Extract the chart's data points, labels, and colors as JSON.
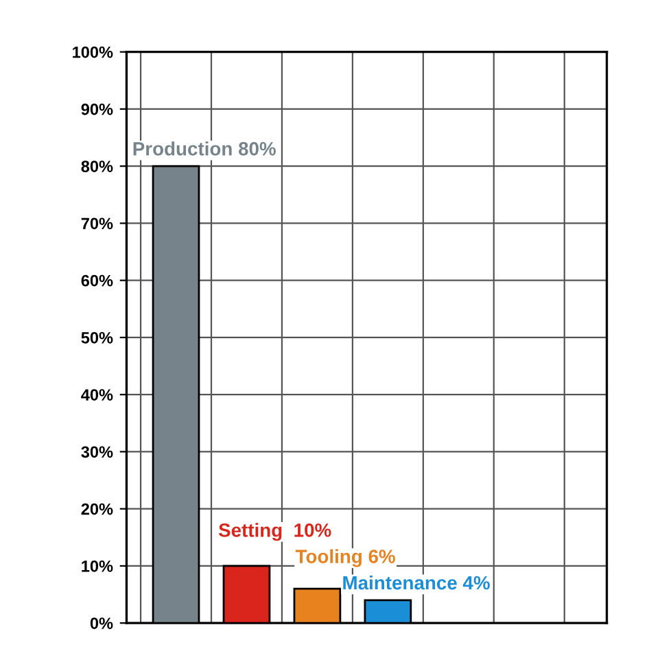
{
  "chart_data": {
    "type": "bar",
    "categories": [
      null,
      null,
      null,
      null
    ],
    "values": [
      80,
      10,
      6,
      4
    ],
    "colors": [
      "#77838b",
      "#d9251c",
      "#e8821e",
      "#1a8fd8"
    ],
    "value_labels": [
      "Production 80%",
      "Setting  10%",
      "Tooling 6%",
      "Maintenance 4%"
    ],
    "ylim": [
      0,
      100
    ],
    "yticks": [
      {
        "value": 0,
        "label": "0%"
      },
      {
        "value": 10,
        "label": "10%"
      },
      {
        "value": 20,
        "label": "20%"
      },
      {
        "value": 30,
        "label": "30%"
      },
      {
        "value": 40,
        "label": "40%"
      },
      {
        "value": 50,
        "label": "50%"
      },
      {
        "value": 60,
        "label": "60%"
      },
      {
        "value": 70,
        "label": "70%"
      },
      {
        "value": 80,
        "label": "80%"
      },
      {
        "value": 90,
        "label": "90%"
      },
      {
        "value": 100,
        "label": "100%"
      }
    ],
    "grid": true,
    "tick_labels": "y"
  }
}
